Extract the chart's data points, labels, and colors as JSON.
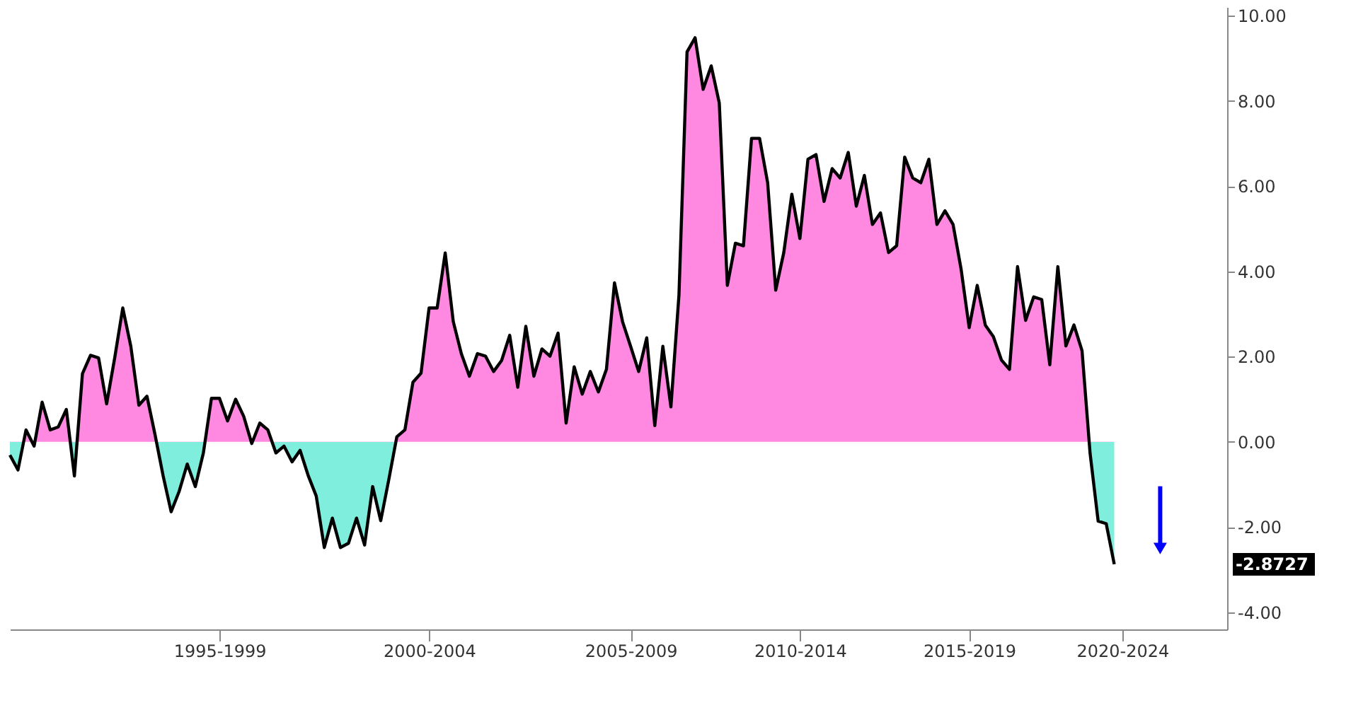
{
  "chart_data": {
    "type": "area",
    "categories": [
      null,
      null,
      null,
      null,
      null,
      null,
      null,
      null,
      null,
      null,
      null,
      null,
      null,
      null,
      null,
      null,
      null,
      null,
      null,
      null,
      null,
      null,
      null,
      null,
      null,
      null,
      "1995-1999",
      null,
      null,
      null,
      null,
      null,
      null,
      null,
      null,
      null,
      null,
      null,
      null,
      null,
      null,
      null,
      null,
      null,
      null,
      null,
      null,
      null,
      null,
      null,
      null,
      null,
      "2000-2004",
      null,
      null,
      null,
      null,
      null,
      null,
      null,
      null,
      null,
      null,
      null,
      null,
      null,
      null,
      null,
      null,
      null,
      null,
      null,
      null,
      null,
      null,
      null,
      null,
      "2005-2009",
      null,
      null,
      null,
      null,
      null,
      null,
      null,
      null,
      null,
      null,
      null,
      null,
      null,
      null,
      null,
      null,
      null,
      null,
      null,
      null,
      "2010-2014",
      null,
      null,
      null,
      null,
      null,
      null,
      null,
      null,
      null,
      null,
      null,
      null,
      null,
      null,
      null,
      null,
      null,
      null,
      null,
      null,
      "2015-2019",
      null,
      null,
      null,
      null,
      null,
      null,
      null,
      null,
      null,
      null,
      null,
      null,
      null,
      null,
      null,
      null,
      null,
      null,
      "2020-2024",
      null,
      null,
      null,
      null,
      null,
      null,
      null,
      null,
      null,
      null,
      null,
      null,
      null
    ],
    "series": [
      {
        "color": "#000000",
        "values": [
          -0.31,
          -0.66,
          0.28,
          -0.1,
          0.93,
          0.28,
          0.35,
          0.76,
          -0.8,
          1.6,
          2.03,
          1.97,
          0.89,
          1.97,
          3.14,
          2.24,
          0.86,
          1.07,
          0.17,
          -0.79,
          -1.64,
          -1.16,
          -0.52,
          -1.05,
          -0.26,
          1.02,
          1.02,
          0.49,
          1.0,
          0.6,
          -0.04,
          0.44,
          0.28,
          -0.26,
          -0.1,
          -0.47,
          -0.2,
          -0.79,
          -1.27,
          -2.48,
          -1.79,
          -2.48,
          -2.38,
          -1.79,
          -2.42,
          -1.05,
          -1.85,
          -0.89,
          0.12,
          0.28,
          1.4,
          1.61,
          3.14,
          3.14,
          4.43,
          2.82,
          2.07,
          1.54,
          2.07,
          2.01,
          1.65,
          1.91,
          2.5,
          1.28,
          2.71,
          1.54,
          2.18,
          2.01,
          2.55,
          0.44,
          1.76,
          1.12,
          1.65,
          1.17,
          1.7,
          3.73,
          2.82,
          2.24,
          1.65,
          2.44,
          0.38,
          2.24,
          0.82,
          3.45,
          9.15,
          9.48,
          8.27,
          8.82,
          7.95,
          3.67,
          4.66,
          4.6,
          7.12,
          7.12,
          6.08,
          3.56,
          4.44,
          5.81,
          4.77,
          6.63,
          6.74,
          5.64,
          6.41,
          6.19,
          6.79,
          5.53,
          6.25,
          5.1,
          5.37,
          4.44,
          4.6,
          6.68,
          6.19,
          6.08,
          6.63,
          5.1,
          5.42,
          5.1,
          4.05,
          2.68,
          3.67,
          2.74,
          2.47,
          1.92,
          1.7,
          4.11,
          2.85,
          3.4,
          3.34,
          1.81,
          4.11,
          2.25,
          2.74,
          2.14,
          -0.27,
          -1.86,
          -1.92,
          -2.8727,
          null,
          null,
          null,
          null,
          null,
          null,
          null,
          null,
          null,
          null,
          null,
          null,
          null,
          null
        ]
      }
    ],
    "colors": [
      "#ff88e0",
      "#80eedd"
    ],
    "ylim": [
      -4.4,
      10.2
    ],
    "yticks": [
      {
        "value": -4,
        "label": "-4.00"
      },
      {
        "value": -2,
        "label": "-2.00"
      },
      {
        "value": 0,
        "label": "0.00"
      },
      {
        "value": 2,
        "label": "2.00"
      },
      {
        "value": 4,
        "label": "4.00"
      },
      {
        "value": 6,
        "label": "6.00"
      },
      {
        "value": 8,
        "label": "8.00"
      },
      {
        "value": 10,
        "label": "10.00"
      }
    ],
    "annotations": [
      "-2.8727"
    ],
    "grid": false
  }
}
